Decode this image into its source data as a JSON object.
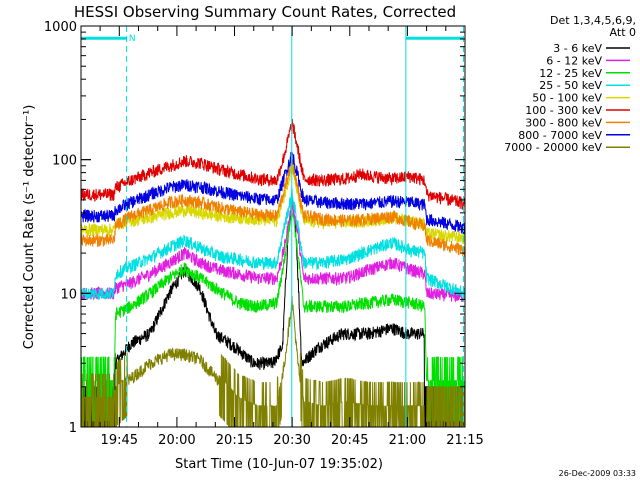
{
  "chart_data": {
    "type": "line",
    "title": "HESSI Observing Summary Count Rates, Corrected",
    "xlabel": "Start Time (10-Jun-07 19:35:02)",
    "ylabel": "Corrected Count Rate (s⁻¹ detector⁻¹)",
    "x_start_minutes": 35.03,
    "xlim_minutes": [
      35.03,
      135
    ],
    "xticks": [
      {
        "label": "19:45",
        "minutes": 45
      },
      {
        "label": "20:00",
        "minutes": 60
      },
      {
        "label": "20:15",
        "minutes": 75
      },
      {
        "label": "20:30",
        "minutes": 90
      },
      {
        "label": "20:45",
        "minutes": 105
      },
      {
        "label": "21:00",
        "minutes": 120
      },
      {
        "label": "21:15",
        "minutes": 135
      }
    ],
    "yscale": "log",
    "ylim": [
      1,
      1000
    ],
    "yticks": [
      {
        "label": "1",
        "value": 1
      },
      {
        "label": "10",
        "value": 10
      },
      {
        "label": "100",
        "value": 100
      },
      {
        "label": "1000",
        "value": 1000
      }
    ],
    "legend": {
      "placement": "outside-right",
      "header": [
        "Det 1,3,4,5,6,9,",
        "Att 0"
      ]
    },
    "series": [
      {
        "name": "3 - 6 keV",
        "color": "#000000",
        "points": [
          [
            35,
            1
          ],
          [
            43.7,
            1
          ],
          [
            44,
            3
          ],
          [
            48,
            4.2
          ],
          [
            53,
            5
          ],
          [
            58,
            10
          ],
          [
            62,
            15
          ],
          [
            66,
            11
          ],
          [
            70,
            5
          ],
          [
            75,
            4
          ],
          [
            80,
            3
          ],
          [
            85,
            3
          ],
          [
            87.5,
            4
          ],
          [
            89,
            30
          ],
          [
            90,
            46
          ],
          [
            91,
            30
          ],
          [
            92.5,
            3
          ],
          [
            97,
            4
          ],
          [
            103,
            5
          ],
          [
            110,
            5
          ],
          [
            116,
            5.5
          ],
          [
            120,
            5
          ],
          [
            124.4,
            5
          ],
          [
            124.5,
            1
          ],
          [
            135,
            1
          ]
        ]
      },
      {
        "name": "6 - 12 keV",
        "color": "#e020e0",
        "points": [
          [
            35,
            10
          ],
          [
            43.7,
            10
          ],
          [
            44,
            11
          ],
          [
            48,
            12
          ],
          [
            53,
            14
          ],
          [
            58,
            17
          ],
          [
            62,
            20
          ],
          [
            66,
            17
          ],
          [
            71,
            15
          ],
          [
            76,
            14
          ],
          [
            81,
            13
          ],
          [
            86,
            13
          ],
          [
            88,
            22
          ],
          [
            90,
            48
          ],
          [
            91.5,
            28
          ],
          [
            93,
            13
          ],
          [
            98,
            13
          ],
          [
            104,
            13
          ],
          [
            110,
            15
          ],
          [
            116,
            17
          ],
          [
            121,
            15
          ],
          [
            124.5,
            14
          ],
          [
            125,
            10
          ],
          [
            135,
            9.5
          ]
        ]
      },
      {
        "name": "12 - 25 keV",
        "color": "#00e000",
        "points": [
          [
            35,
            2
          ],
          [
            43.7,
            2
          ],
          [
            44,
            7
          ],
          [
            48,
            8
          ],
          [
            53,
            10
          ],
          [
            58,
            13
          ],
          [
            62,
            15.5
          ],
          [
            66,
            13
          ],
          [
            71,
            10.5
          ],
          [
            76,
            8.5
          ],
          [
            81,
            8
          ],
          [
            86,
            8.5
          ],
          [
            88,
            18
          ],
          [
            90,
            44
          ],
          [
            91.5,
            20
          ],
          [
            93,
            8
          ],
          [
            98,
            8
          ],
          [
            104,
            8
          ],
          [
            110,
            8.5
          ],
          [
            116,
            9
          ],
          [
            121,
            8.5
          ],
          [
            124.5,
            8
          ],
          [
            125,
            2
          ],
          [
            135,
            2
          ]
        ]
      },
      {
        "name": "25 - 50 keV",
        "color": "#00e0e0",
        "points": [
          [
            35,
            10
          ],
          [
            43.7,
            10
          ],
          [
            44,
            14
          ],
          [
            48,
            16
          ],
          [
            53,
            18.5
          ],
          [
            58,
            22
          ],
          [
            62,
            25
          ],
          [
            66,
            22
          ],
          [
            71,
            19
          ],
          [
            76,
            18
          ],
          [
            81,
            17
          ],
          [
            86,
            17
          ],
          [
            88,
            32
          ],
          [
            90,
            56
          ],
          [
            91.5,
            32
          ],
          [
            93,
            17
          ],
          [
            98,
            17
          ],
          [
            104,
            18
          ],
          [
            110,
            21
          ],
          [
            116,
            24
          ],
          [
            121,
            21
          ],
          [
            124.5,
            20
          ],
          [
            125,
            13
          ],
          [
            135,
            10
          ]
        ]
      },
      {
        "name": "50 - 100 keV",
        "color": "#d8d800",
        "points": [
          [
            35,
            30
          ],
          [
            43.7,
            30
          ],
          [
            44,
            33
          ],
          [
            48,
            35
          ],
          [
            53,
            37
          ],
          [
            58,
            40
          ],
          [
            62,
            42
          ],
          [
            66,
            40
          ],
          [
            71,
            38
          ],
          [
            76,
            37
          ],
          [
            81,
            36
          ],
          [
            86,
            35
          ],
          [
            88,
            55
          ],
          [
            90,
            90
          ],
          [
            91.5,
            55
          ],
          [
            93,
            35
          ],
          [
            98,
            34
          ],
          [
            104,
            34
          ],
          [
            110,
            35
          ],
          [
            116,
            37
          ],
          [
            121,
            35
          ],
          [
            124.5,
            33
          ],
          [
            125,
            28
          ],
          [
            135,
            26
          ]
        ]
      },
      {
        "name": "100 - 300 keV",
        "color": "#e00000",
        "points": [
          [
            35,
            55
          ],
          [
            43.7,
            55
          ],
          [
            44,
            62
          ],
          [
            48,
            70
          ],
          [
            53,
            80
          ],
          [
            58,
            90
          ],
          [
            62,
            98
          ],
          [
            66,
            95
          ],
          [
            71,
            85
          ],
          [
            76,
            78
          ],
          [
            81,
            72
          ],
          [
            86,
            70
          ],
          [
            88,
            110
          ],
          [
            90,
            190
          ],
          [
            91.5,
            120
          ],
          [
            93,
            72
          ],
          [
            98,
            70
          ],
          [
            104,
            72
          ],
          [
            108,
            78
          ],
          [
            110,
            76
          ],
          [
            116,
            72
          ],
          [
            121,
            75
          ],
          [
            124.5,
            70
          ],
          [
            125,
            55
          ],
          [
            135,
            47
          ]
        ]
      },
      {
        "name": "300 - 800 keV",
        "color": "#f08000",
        "points": [
          [
            35,
            25
          ],
          [
            43.7,
            25
          ],
          [
            44,
            32
          ],
          [
            48,
            38
          ],
          [
            53,
            42
          ],
          [
            58,
            48
          ],
          [
            62,
            50
          ],
          [
            66,
            48
          ],
          [
            71,
            44
          ],
          [
            76,
            41
          ],
          [
            81,
            39
          ],
          [
            86,
            38
          ],
          [
            88,
            60
          ],
          [
            90,
            100
          ],
          [
            91.5,
            60
          ],
          [
            93,
            38
          ],
          [
            98,
            36
          ],
          [
            104,
            35
          ],
          [
            110,
            36
          ],
          [
            116,
            38
          ],
          [
            121,
            34
          ],
          [
            124.5,
            32
          ],
          [
            125,
            25
          ],
          [
            135,
            21
          ]
        ]
      },
      {
        "name": "800 - 7000 keV",
        "color": "#0000e0",
        "points": [
          [
            35,
            38
          ],
          [
            43.7,
            38
          ],
          [
            44,
            42
          ],
          [
            48,
            48
          ],
          [
            53,
            55
          ],
          [
            58,
            62
          ],
          [
            62,
            65
          ],
          [
            66,
            63
          ],
          [
            71,
            58
          ],
          [
            76,
            54
          ],
          [
            81,
            51
          ],
          [
            86,
            50
          ],
          [
            88,
            75
          ],
          [
            90,
            112
          ],
          [
            91.5,
            75
          ],
          [
            93,
            50
          ],
          [
            98,
            48
          ],
          [
            104,
            47
          ],
          [
            110,
            47
          ],
          [
            116,
            49
          ],
          [
            121,
            48
          ],
          [
            124.5,
            46
          ],
          [
            125,
            36
          ],
          [
            135,
            31
          ]
        ]
      },
      {
        "name": "7000 - 20000 keV",
        "color": "#808000",
        "points": [
          [
            35,
            1.5
          ],
          [
            43.7,
            1.5
          ],
          [
            44,
            1.8
          ],
          [
            48,
            2.3
          ],
          [
            53,
            3
          ],
          [
            58,
            3.5
          ],
          [
            62,
            3.5
          ],
          [
            66,
            3.2
          ],
          [
            71,
            2.2
          ],
          [
            76,
            1.5
          ],
          [
            81,
            1.3
          ],
          [
            86,
            1.3
          ],
          [
            88,
            3
          ],
          [
            90,
            9
          ],
          [
            91.5,
            3
          ],
          [
            93,
            1.4
          ],
          [
            98,
            1.3
          ],
          [
            104,
            1.4
          ],
          [
            110,
            1.3
          ],
          [
            116,
            1.3
          ],
          [
            121,
            1.3
          ],
          [
            124.5,
            1.3
          ],
          [
            125,
            1
          ],
          [
            135,
            1
          ]
        ]
      }
    ],
    "markers": [
      {
        "type": "vertical-dashed",
        "minutes": 46.9,
        "color": "#00e0e0"
      },
      {
        "type": "vertical-dashed",
        "minutes": 134.6,
        "color": "#00e0e0"
      },
      {
        "type": "vertical-solid",
        "minutes": 89.9,
        "color": "#00e0e0"
      },
      {
        "type": "vertical-solid",
        "minutes": 119.6,
        "color": "#00e0e0"
      },
      {
        "type": "horizontal-bar",
        "from": 35.03,
        "to": 46.9,
        "value": 810,
        "color": "#00e0e0"
      },
      {
        "type": "horizontal-bar",
        "from": 119.6,
        "to": 134.6,
        "value": 810,
        "color": "#00e0e0"
      }
    ],
    "annotations": [
      {
        "text": "N",
        "minutes": 47.5,
        "value": 830,
        "color": "#00e0e0"
      }
    ],
    "timestamp": "26-Dec-2009 03:33"
  }
}
